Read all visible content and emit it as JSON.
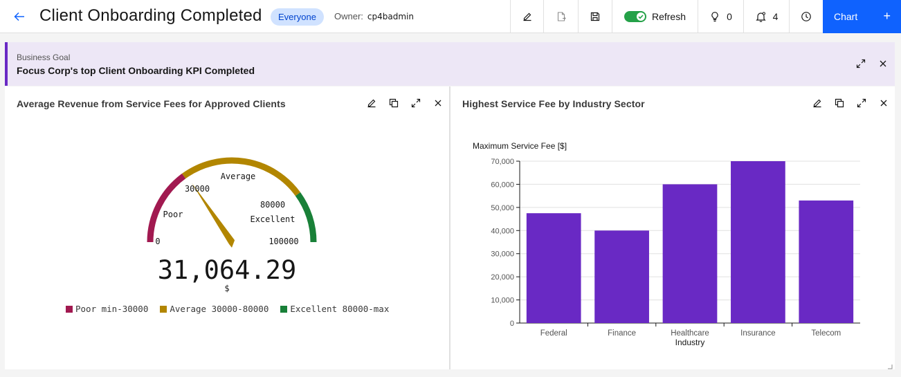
{
  "header": {
    "title": "Client Onboarding Completed",
    "visibility_tag": "Everyone",
    "owner_label": "Owner:",
    "owner_name": "cp4badmin",
    "refresh_label": "Refresh",
    "ideas_count": "0",
    "notifications_count": "4",
    "chart_button_label": "Chart",
    "chart_button_plus": "+"
  },
  "goal": {
    "kicker": "Business Goal",
    "title": "Focus Corp's top Client Onboarding KPI Completed"
  },
  "gauge_panel": {
    "title": "Average Revenue from Service Fees for Approved Clients",
    "value_display": "31,064.29",
    "unit": "$",
    "min_label": "0",
    "max_label": "100000",
    "threshold_low_label": "30000",
    "threshold_high_label": "80000",
    "band_labels": {
      "poor": "Poor",
      "average": "Average",
      "excellent": "Excellent"
    },
    "legend": [
      {
        "label": "Poor min-30000",
        "color": "#a11950"
      },
      {
        "label": "Average 30000-80000",
        "color": "#b28600"
      },
      {
        "label": "Excellent 80000-max",
        "color": "#198038"
      }
    ]
  },
  "bar_panel": {
    "title": "Highest Service Fee by Industry Sector"
  },
  "chart_data": [
    {
      "type": "gauge",
      "value": 31064.29,
      "min": 0,
      "max": 100000,
      "bands": [
        {
          "name": "Poor",
          "from": 0,
          "to": 30000,
          "color": "#a11950"
        },
        {
          "name": "Average",
          "from": 30000,
          "to": 80000,
          "color": "#b28600"
        },
        {
          "name": "Excellent",
          "from": 80000,
          "to": 100000,
          "color": "#198038"
        }
      ],
      "needle_color": "#b28600"
    },
    {
      "type": "bar",
      "title": "Highest Service Fee by Industry Sector",
      "ylabel": "Maximum Service Fee [$]",
      "xlabel": "Industry",
      "categories": [
        "Federal",
        "Finance",
        "Healthcare",
        "Insurance",
        "Telecom"
      ],
      "values": [
        47500,
        40000,
        60000,
        70000,
        53000
      ],
      "ylim": [
        0,
        70000
      ],
      "yticks": [
        0,
        10000,
        20000,
        30000,
        40000,
        50000,
        60000,
        70000
      ],
      "ytick_labels": [
        "0",
        "10,000",
        "20,000",
        "30,000",
        "40,000",
        "50,000",
        "60,000",
        "70,000"
      ],
      "bar_color": "#6929c4",
      "grid": true
    }
  ]
}
